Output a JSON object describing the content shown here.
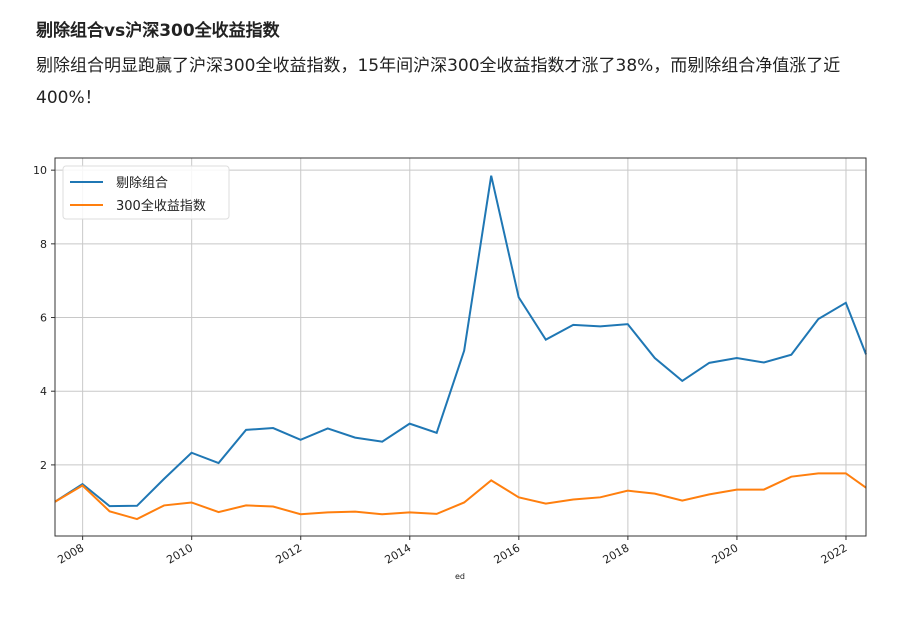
{
  "article": {
    "title": "剔除组合vs沪深300全收益指数",
    "paragraph": "剔除组合明显跑赢了沪深300全收益指数，15年间沪深300全收益指数才涨了38%，而剔除组合净值涨了近400%！"
  },
  "chart_data": {
    "type": "line",
    "xlabel": "ed",
    "ylabel": "",
    "ylim": [
      0.07,
      10.33
    ],
    "xlim": [
      "2007-06-30",
      "2022-05-15"
    ],
    "xticks": [
      "2008",
      "2010",
      "2012",
      "2014",
      "2016",
      "2018",
      "2020",
      "2022"
    ],
    "yticks": [
      2,
      4,
      6,
      8,
      10
    ],
    "grid": true,
    "legend": "top-left",
    "x": [
      "2007-06-30",
      "2007-12-31",
      "2008-06-30",
      "2008-12-31",
      "2009-06-30",
      "2009-12-31",
      "2010-06-30",
      "2010-12-31",
      "2011-06-30",
      "2011-12-31",
      "2012-06-30",
      "2012-12-31",
      "2013-06-30",
      "2013-12-31",
      "2014-06-30",
      "2014-12-31",
      "2015-06-30",
      "2015-12-31",
      "2016-06-30",
      "2016-12-31",
      "2017-06-30",
      "2017-12-31",
      "2018-06-30",
      "2018-12-31",
      "2019-06-30",
      "2019-12-31",
      "2020-06-30",
      "2020-12-31",
      "2021-06-30",
      "2021-12-31",
      "2022-05-15"
    ],
    "series": [
      {
        "name": "剔除组合",
        "color": "#1f77b4",
        "values": [
          1.0,
          1.48,
          0.88,
          0.89,
          1.62,
          2.33,
          2.05,
          2.95,
          3.0,
          2.68,
          2.99,
          2.74,
          2.63,
          3.12,
          2.87,
          5.1,
          9.85,
          6.55,
          5.4,
          5.8,
          5.76,
          5.82,
          4.9,
          4.28,
          4.77,
          4.9,
          4.78,
          4.99,
          5.96,
          6.4,
          5.0
        ]
      },
      {
        "name": "300全收益指数",
        "color": "#ff7f0e",
        "values": [
          1.0,
          1.44,
          0.74,
          0.53,
          0.9,
          0.98,
          0.72,
          0.9,
          0.87,
          0.66,
          0.71,
          0.73,
          0.66,
          0.71,
          0.67,
          0.98,
          1.58,
          1.12,
          0.95,
          1.06,
          1.12,
          1.3,
          1.22,
          1.03,
          1.2,
          1.33,
          1.33,
          1.68,
          1.77,
          1.77,
          1.38
        ]
      }
    ]
  }
}
